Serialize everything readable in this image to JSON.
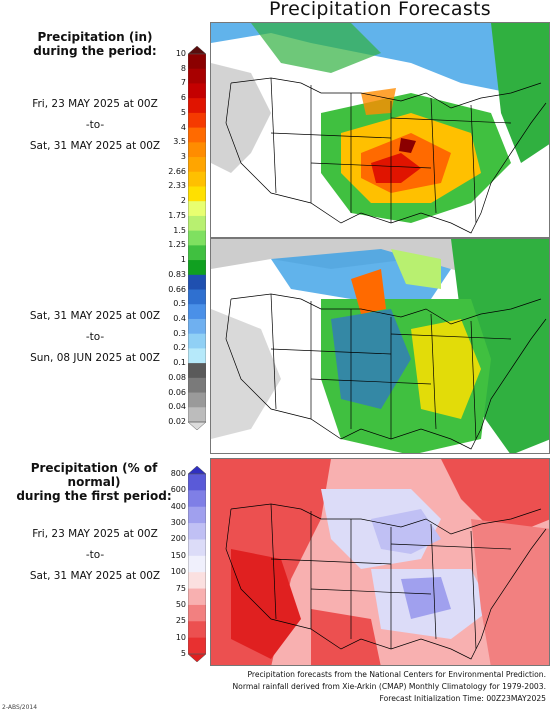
{
  "title": "Precipitation Forecasts",
  "legend_top": {
    "title_line1": "Precipitation (in)",
    "title_line2": "during the period:",
    "ticks": [
      "10",
      "8",
      "7",
      "6",
      "5",
      "4",
      "3.5",
      "3",
      "2.66",
      "2.33",
      "2",
      "1.75",
      "1.5",
      "1.25",
      "1",
      "0.83",
      "0.66",
      "0.5",
      "0.4",
      "0.3",
      "0.2",
      "0.1",
      "0.08",
      "0.06",
      "0.04",
      "0.02"
    ],
    "colors": [
      "#5a0d0d",
      "#8b0000",
      "#a80000",
      "#c40000",
      "#e01400",
      "#f53a00",
      "#ff6a00",
      "#ff8c00",
      "#ffa500",
      "#ffc000",
      "#ffe000",
      "#e8ff70",
      "#b8f070",
      "#7fe060",
      "#40c040",
      "#10a020",
      "#1f50b0",
      "#2f70d0",
      "#4a90e8",
      "#6fb0f0",
      "#90d0f5",
      "#b6e9fa",
      "#5a5a5a",
      "#7a7a7a",
      "#9a9a9a",
      "#bcbcbc",
      "#dcdcdc"
    ]
  },
  "period1": {
    "start": "Fri, 23 MAY 2025 at 00Z",
    "sep": "-to-",
    "end": "Sat, 31 MAY 2025 at 00Z"
  },
  "period2": {
    "start": "Sat, 31 MAY 2025 at 00Z",
    "sep": "-to-",
    "end": "Sun, 08 JUN 2025 at 00Z"
  },
  "legend_bottom": {
    "title_line1": "Precipitation (% of normal)",
    "title_line2": "during the first period:",
    "ticks": [
      "800",
      "600",
      "400",
      "300",
      "200",
      "150",
      "100",
      "75",
      "50",
      "25",
      "10",
      "5"
    ],
    "colors": [
      "#3030c0",
      "#5a5ad8",
      "#7f7fe6",
      "#a0a0ee",
      "#c0c0f4",
      "#dcdcf8",
      "#f0f0fc",
      "#fbe0e0",
      "#f8b0b0",
      "#f28080",
      "#ec5050",
      "#e83030",
      "#e02020"
    ]
  },
  "period3": {
    "start": "Fri, 23 MAY 2025 at 00Z",
    "sep": "-to-",
    "end": "Sat, 31 MAY 2025 at 00Z"
  },
  "footer": {
    "line1": "Precipitation forecasts from the National Centers for Environmental Prediction.",
    "line2": "Normal rainfall derived from Xie-Arkin (CMAP) Monthly Climatology for 1979-2003.",
    "line3": "Forecast Initialization Time: 00Z23MAY2025"
  },
  "corner_text": "2-ABS/2014"
}
